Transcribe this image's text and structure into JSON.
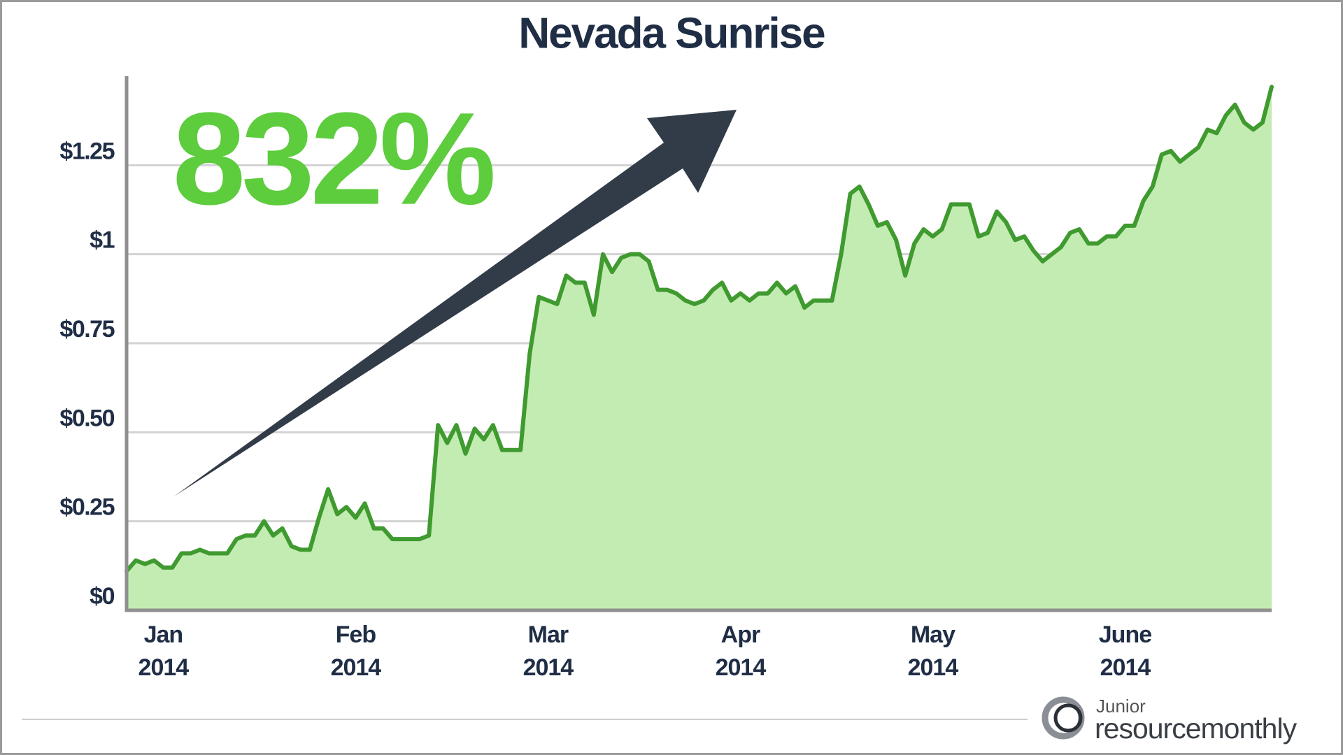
{
  "chart_data": {
    "type": "area",
    "title": "Nevada Sunrise",
    "annotation": "832%",
    "color": "#3f9a2f",
    "fill": "#c3ecb2",
    "grid": true,
    "ylim": [
      0,
      1.5
    ],
    "yticks": [
      {
        "value": 0,
        "label": "$0"
      },
      {
        "value": 0.25,
        "label": "$0.25"
      },
      {
        "value": 0.5,
        "label": "$0.50"
      },
      {
        "value": 0.75,
        "label": "$0.75"
      },
      {
        "value": 1,
        "label": "$1"
      },
      {
        "value": 1.25,
        "label": "$1.25"
      }
    ],
    "categories": [
      null,
      null,
      null,
      null,
      "Jan 2014",
      null,
      null,
      null,
      null,
      null,
      null,
      null,
      null,
      null,
      null,
      null,
      null,
      null,
      null,
      null,
      null,
      null,
      null,
      null,
      null,
      "Feb 2014",
      null,
      null,
      null,
      null,
      null,
      null,
      null,
      null,
      null,
      null,
      null,
      null,
      null,
      null,
      null,
      null,
      null,
      null,
      null,
      null,
      "Mar 2014",
      null,
      null,
      null,
      null,
      null,
      null,
      null,
      null,
      null,
      null,
      null,
      null,
      null,
      null,
      null,
      null,
      null,
      null,
      null,
      null,
      "Apr 2014",
      null,
      null,
      null,
      null,
      null,
      null,
      null,
      null,
      null,
      null,
      null,
      null,
      null,
      null,
      null,
      null,
      null,
      null,
      null,
      null,
      "May 2014",
      null,
      null,
      null,
      null,
      null,
      null,
      null,
      null,
      null,
      null,
      null,
      null,
      null,
      null,
      null,
      null,
      null,
      null,
      null,
      null,
      "June 2014",
      null,
      null,
      null,
      null,
      null,
      null,
      null,
      null,
      null,
      null,
      null,
      null,
      null,
      null,
      null,
      null
    ],
    "values": [
      0.11,
      0.14,
      0.13,
      0.14,
      0.12,
      0.12,
      0.16,
      0.16,
      0.17,
      0.16,
      0.16,
      0.16,
      0.2,
      0.21,
      0.21,
      0.25,
      0.21,
      0.23,
      0.18,
      0.17,
      0.17,
      0.26,
      0.34,
      0.27,
      0.29,
      0.26,
      0.3,
      0.23,
      0.23,
      0.2,
      0.2,
      0.2,
      0.2,
      0.21,
      0.52,
      0.47,
      0.52,
      0.44,
      0.51,
      0.48,
      0.52,
      0.45,
      0.45,
      0.45,
      0.72,
      0.88,
      0.87,
      0.86,
      0.94,
      0.92,
      0.92,
      0.83,
      1.0,
      0.95,
      0.99,
      1.0,
      1.0,
      0.98,
      0.9,
      0.9,
      0.89,
      0.87,
      0.86,
      0.87,
      0.9,
      0.92,
      0.87,
      0.89,
      0.87,
      0.89,
      0.89,
      0.92,
      0.89,
      0.91,
      0.85,
      0.87,
      0.87,
      0.87,
      1.0,
      1.17,
      1.19,
      1.14,
      1.08,
      1.09,
      1.04,
      0.94,
      1.03,
      1.07,
      1.05,
      1.07,
      1.14,
      1.14,
      1.14,
      1.05,
      1.06,
      1.12,
      1.09,
      1.04,
      1.05,
      1.01,
      0.98,
      1.0,
      1.02,
      1.06,
      1.07,
      1.03,
      1.03,
      1.05,
      1.05,
      1.08,
      1.08,
      1.15,
      1.19,
      1.28,
      1.29,
      1.26,
      1.28,
      1.3,
      1.35,
      1.34,
      1.39,
      1.42,
      1.37,
      1.35,
      1.37,
      1.47
    ],
    "logo": {
      "small": "Junior",
      "large": "resourcemonthly"
    }
  }
}
